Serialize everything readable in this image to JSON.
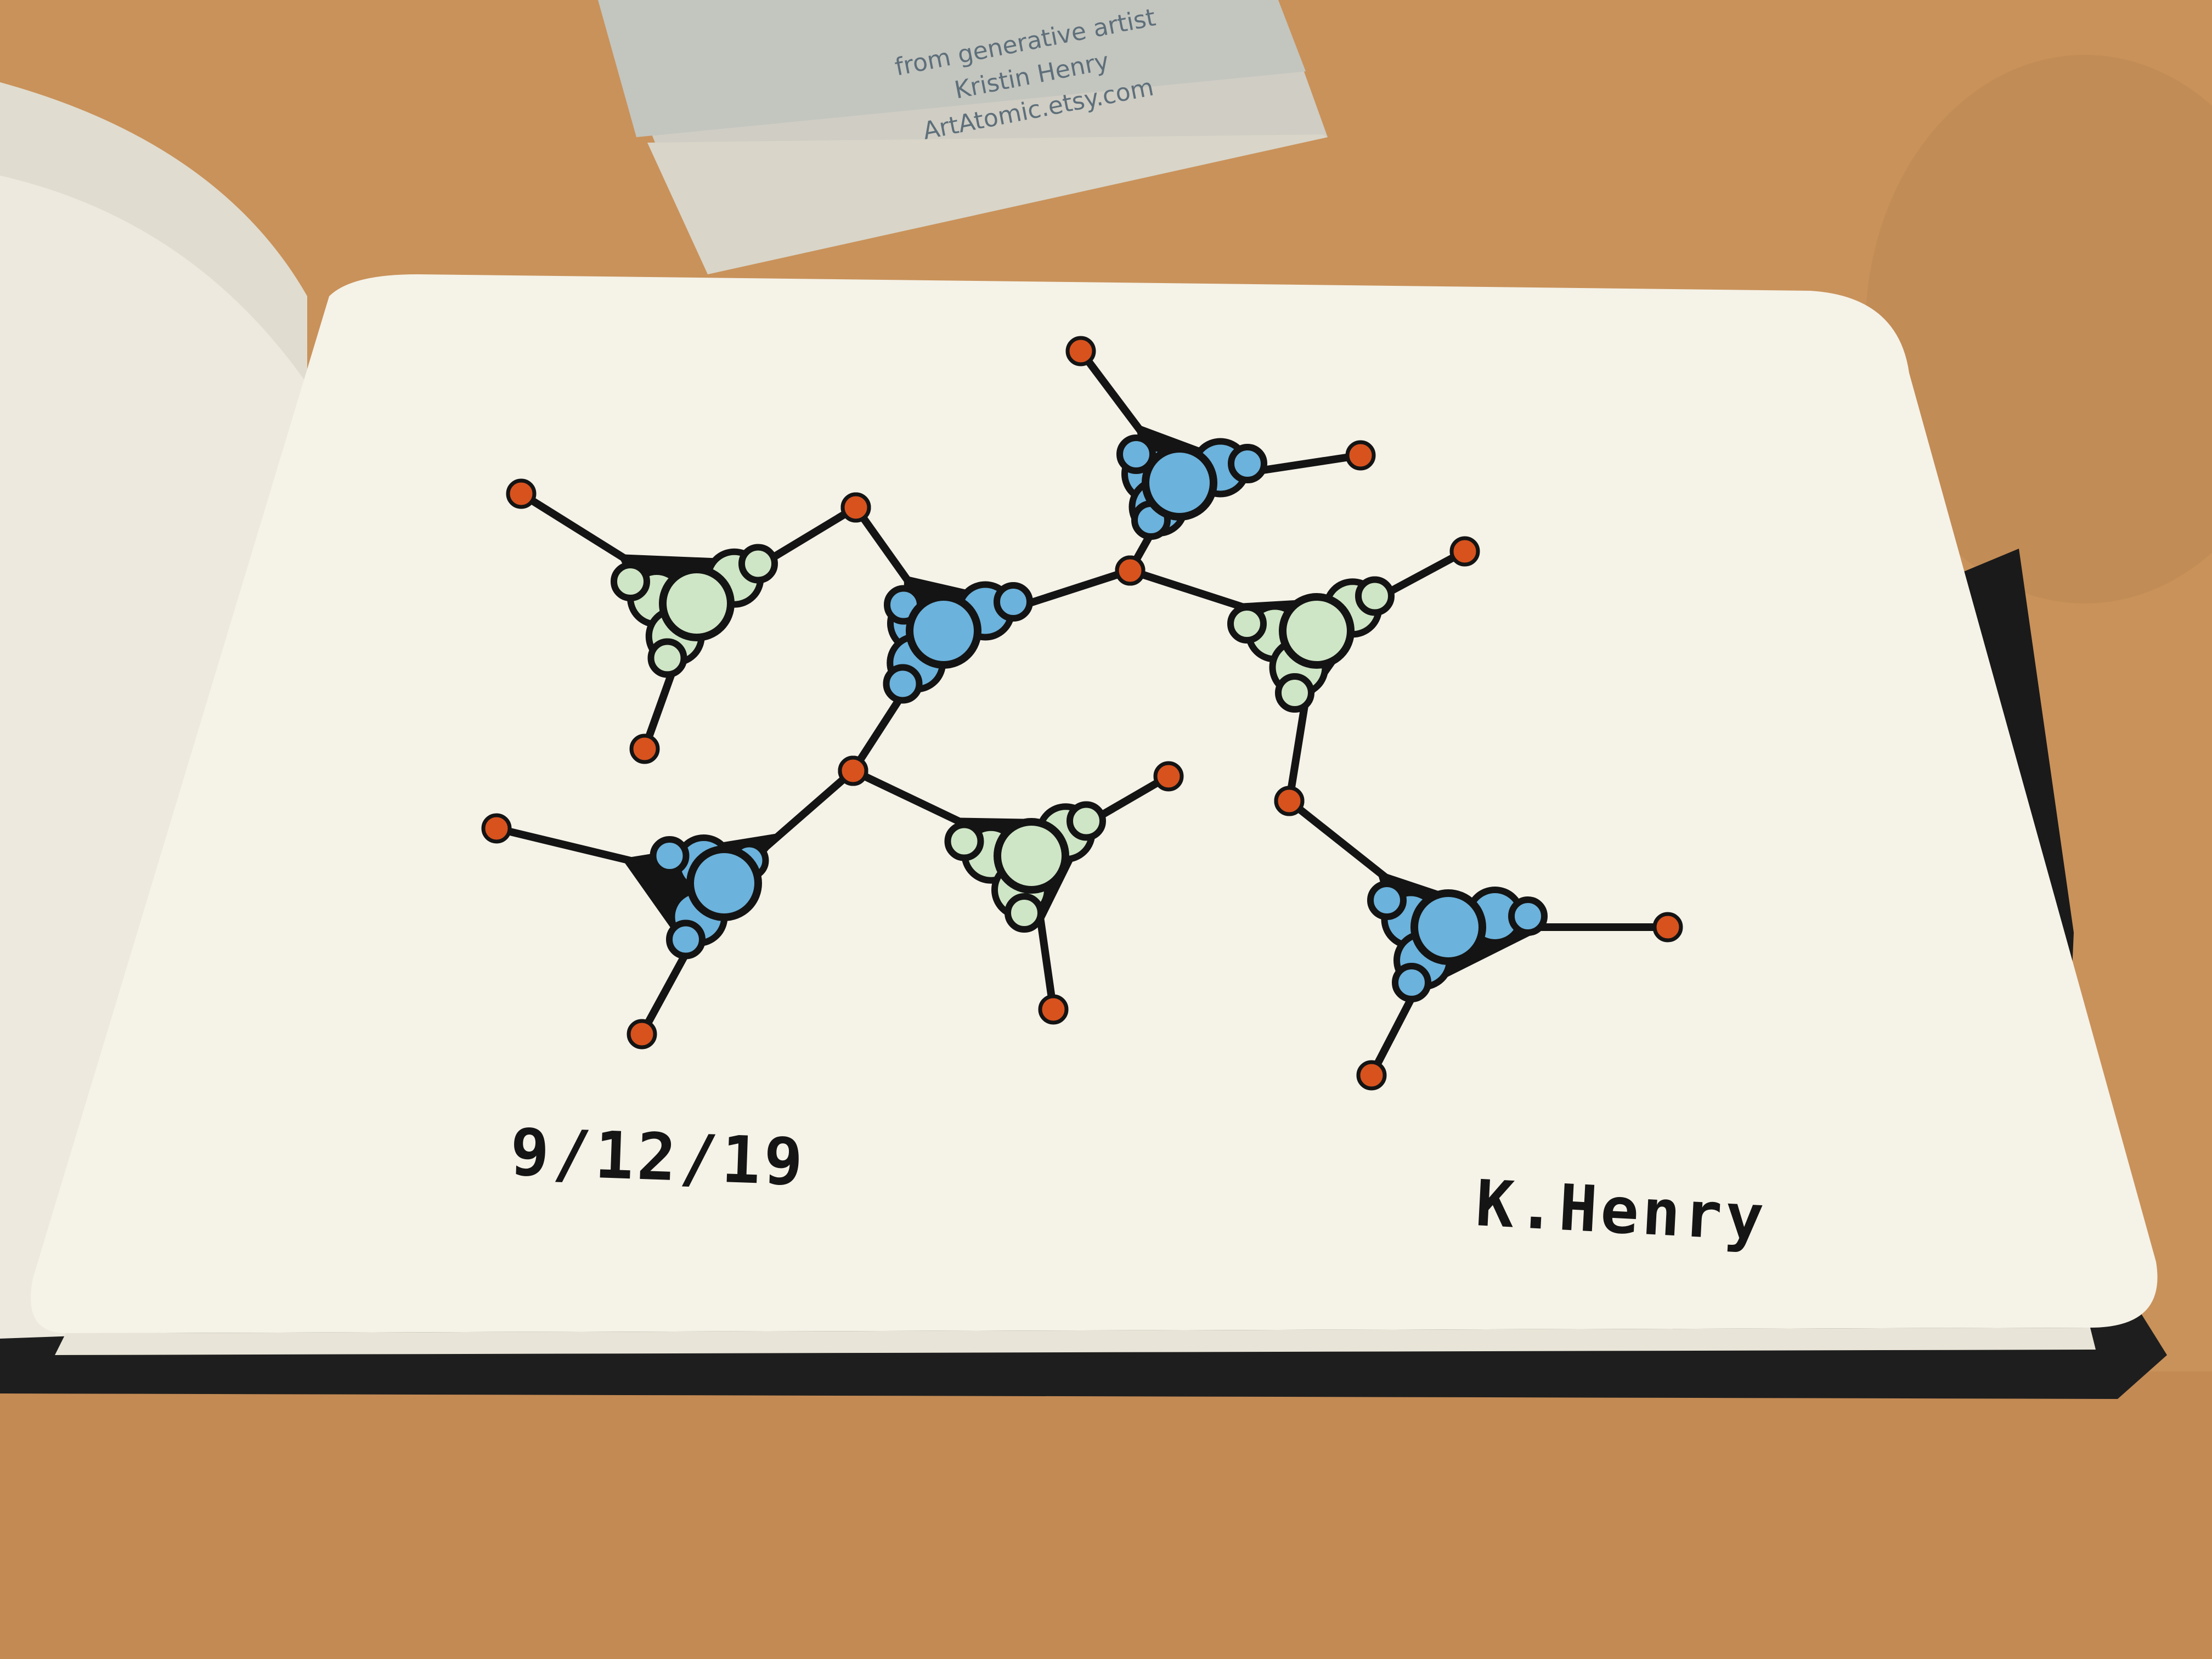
{
  "business_card": {
    "line1": "from generative artist",
    "line2": "Kristin Henry",
    "line3": "ArtAtomic.etsy.com"
  },
  "sketchbook": {
    "date": "9/12/19",
    "signature": "K.Henry"
  },
  "colors": {
    "table": "#c9925a",
    "paper": "#f5f2e8",
    "ink": "#141414",
    "node_red": "#d8521e",
    "bubble_blue": "#6bb2dc",
    "bubble_green": "#cfe6c6"
  },
  "illustration": {
    "motif_count": 7,
    "motifs": [
      {
        "bubble_color": "green"
      },
      {
        "bubble_color": "blue"
      },
      {
        "bubble_color": "blue"
      },
      {
        "bubble_color": "green"
      },
      {
        "bubble_color": "blue"
      },
      {
        "bubble_color": "green"
      },
      {
        "bubble_color": "blue"
      }
    ]
  }
}
